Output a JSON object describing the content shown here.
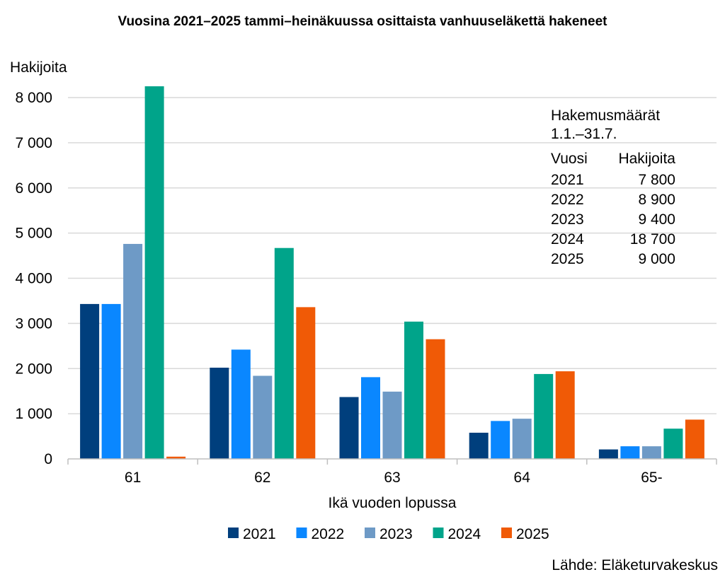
{
  "chart_data": {
    "type": "bar",
    "title": "Vuosina 2021–2025 tammi–heinäkuussa osittaista vanhuuseläkettä hakeneet",
    "ylabel": "Hakijoita",
    "xlabel": "Ikä vuoden lopussa",
    "categories": [
      "61",
      "62",
      "63",
      "64",
      "65-"
    ],
    "series": [
      {
        "name": "2021",
        "color": "#003F7D",
        "values": [
          3430,
          2020,
          1370,
          580,
          210
        ]
      },
      {
        "name": "2022",
        "color": "#0A87FF",
        "values": [
          3430,
          2420,
          1810,
          840,
          280
        ]
      },
      {
        "name": "2023",
        "color": "#6E9AC6",
        "values": [
          4760,
          1840,
          1490,
          890,
          280
        ]
      },
      {
        "name": "2024",
        "color": "#00A48A",
        "values": [
          8250,
          4670,
          3040,
          1880,
          670
        ]
      },
      {
        "name": "2025",
        "color": "#F05A06",
        "values": [
          50,
          3360,
          2650,
          1940,
          870
        ]
      }
    ],
    "ylim": [
      0,
      8000
    ],
    "yticks": [
      {
        "value": 0,
        "label": "0"
      },
      {
        "value": 1000,
        "label": "1 000"
      },
      {
        "value": 2000,
        "label": "2 000"
      },
      {
        "value": 3000,
        "label": "3 000"
      },
      {
        "value": 4000,
        "label": "4 000"
      },
      {
        "value": 5000,
        "label": "5 000"
      },
      {
        "value": 6000,
        "label": "6 000"
      },
      {
        "value": 7000,
        "label": "7 000"
      },
      {
        "value": 8000,
        "label": "8 000"
      }
    ],
    "grid": true,
    "legend_position": "bottom",
    "inset_table": {
      "title_line1": "Hakemusmäärät",
      "title_line2": "1.1.–31.7.",
      "header": [
        "Vuosi",
        "Hakijoita"
      ],
      "rows": [
        [
          "2021",
          "7 800"
        ],
        [
          "2022",
          "8 900"
        ],
        [
          "2023",
          "9 400"
        ],
        [
          "2024",
          "18 700"
        ],
        [
          "2025",
          "9 000"
        ]
      ]
    },
    "source": "Lähde: Eläketurvakeskus"
  },
  "colors": {
    "grid": "#D9D9D9",
    "axis": "#BFBFBF",
    "text": "#000000"
  }
}
